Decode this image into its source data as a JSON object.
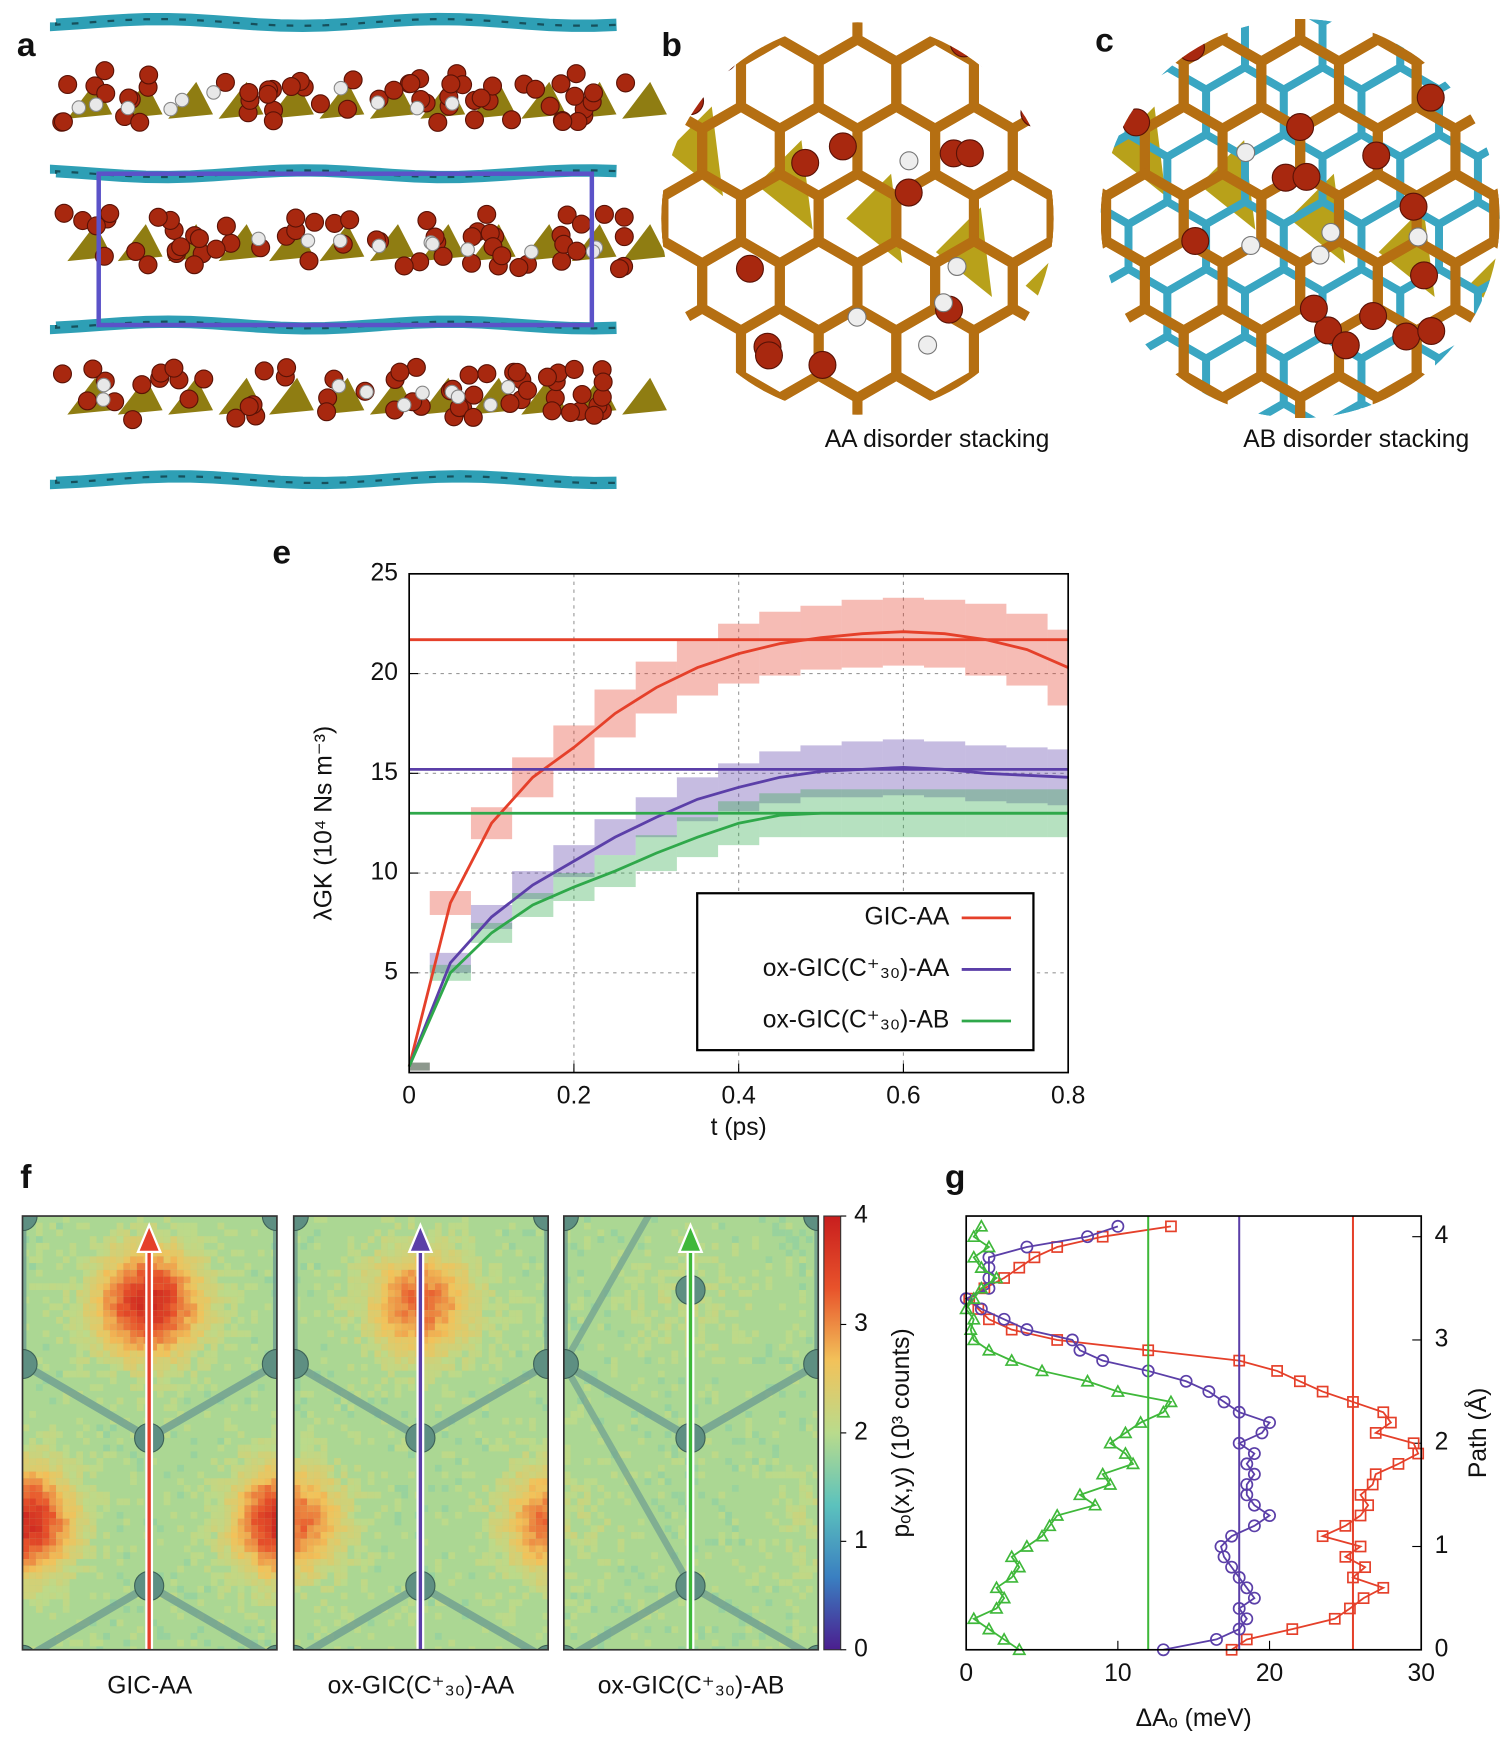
{
  "panel_labels": [
    "a",
    "b",
    "c",
    "e",
    "f",
    "g"
  ],
  "captions": {
    "b": "AA disorder stacking",
    "c": "AB disorder stacking"
  },
  "chart_data": [
    {
      "type": "line",
      "x_label": "t (ps)",
      "y_label": "λGK (10⁴ Ns m⁻³)",
      "x": [
        0,
        0.05,
        0.1,
        0.15,
        0.2,
        0.25,
        0.3,
        0.35,
        0.4,
        0.45,
        0.5,
        0.55,
        0.6,
        0.65,
        0.7,
        0.75,
        0.8
      ],
      "xlim": [
        0,
        0.8
      ],
      "xticks": [
        0,
        0.2,
        0.4,
        0.6,
        0.8
      ],
      "ylim": [
        0,
        25
      ],
      "yticks": [
        5,
        10,
        15,
        20,
        25
      ],
      "grid": true,
      "legend": "lower right",
      "series": [
        {
          "name": "GIC-AA",
          "color": "#e5402a",
          "values": [
            0.3,
            8.5,
            12.5,
            14.8,
            16.3,
            18.0,
            19.3,
            20.3,
            21.0,
            21.5,
            21.8,
            22.0,
            22.1,
            22.0,
            21.7,
            21.2,
            20.3
          ],
          "errors": [
            0.2,
            0.6,
            0.8,
            1.0,
            1.1,
            1.2,
            1.3,
            1.4,
            1.5,
            1.6,
            1.6,
            1.7,
            1.7,
            1.7,
            1.8,
            1.8,
            1.9
          ],
          "mean": 21.7
        },
        {
          "name": "ox-GIC(C⁺₃₀)-AA",
          "color": "#5b3fa8",
          "values": [
            0.3,
            5.5,
            7.8,
            9.4,
            10.6,
            11.8,
            12.8,
            13.7,
            14.3,
            14.8,
            15.1,
            15.2,
            15.3,
            15.2,
            15.0,
            14.9,
            14.8
          ],
          "errors": [
            0.2,
            0.5,
            0.6,
            0.7,
            0.8,
            0.9,
            1.0,
            1.1,
            1.2,
            1.3,
            1.3,
            1.4,
            1.4,
            1.4,
            1.4,
            1.4,
            1.4
          ],
          "mean": 15.2
        },
        {
          "name": "ox-GIC(C⁺₃₀)-AB",
          "color": "#2fa84a",
          "values": [
            0.3,
            5.0,
            7.0,
            8.4,
            9.3,
            10.1,
            11.0,
            11.8,
            12.5,
            12.9,
            13.0,
            13.0,
            13.0,
            13.0,
            13.0,
            13.0,
            13.0
          ],
          "errors": [
            0.2,
            0.4,
            0.5,
            0.6,
            0.7,
            0.8,
            0.9,
            1.0,
            1.1,
            1.1,
            1.2,
            1.2,
            1.2,
            1.2,
            1.2,
            1.2,
            1.2
          ],
          "mean": 13.0
        }
      ]
    },
    {
      "type": "heatmap",
      "maps": [
        "GIC-AA",
        "ox-GIC(C⁺₃₀)-AA",
        "ox-GIC(C⁺₃₀)-AB"
      ],
      "arrow_colors": [
        "#e5402a",
        "#5b3fa8",
        "#3fb83a"
      ],
      "colorbar_label": "pₒ(x,y) (10³ counts)",
      "clim": [
        0,
        4
      ],
      "cticks": [
        0,
        1,
        2,
        3,
        4
      ],
      "colormap": [
        "#4b1e8f",
        "#3a7fc1",
        "#5cc2bd",
        "#b9db8c",
        "#f2c25a",
        "#e8532b",
        "#c81e1e"
      ]
    },
    {
      "type": "line",
      "orientation": "horizontal",
      "x_label": "ΔAₒ (meV)",
      "y_label": "Path (Å)",
      "y": [
        0,
        0.1,
        0.2,
        0.3,
        0.4,
        0.5,
        0.6,
        0.7,
        0.8,
        0.9,
        1.0,
        1.1,
        1.2,
        1.3,
        1.4,
        1.5,
        1.6,
        1.7,
        1.8,
        1.9,
        2.0,
        2.1,
        2.2,
        2.3,
        2.4,
        2.5,
        2.6,
        2.7,
        2.8,
        2.9,
        3.0,
        3.1,
        3.2,
        3.3,
        3.4,
        3.5,
        3.6,
        3.7,
        3.8,
        3.9,
        4.0,
        4.1
      ],
      "xlim": [
        0,
        30
      ],
      "xticks": [
        0,
        10,
        20,
        30
      ],
      "ylim": [
        0,
        4.2
      ],
      "yticks": [
        0,
        1,
        2,
        3,
        4
      ],
      "series": [
        {
          "color": "#e5402a",
          "marker": "square",
          "values": [
            17.5,
            18.5,
            21.5,
            24.3,
            25.3,
            26.2,
            27.5,
            25.5,
            26.3,
            25.0,
            26.0,
            23.5,
            25.0,
            26.0,
            26.5,
            26.0,
            26.8,
            27.0,
            28.5,
            29.8,
            29.5,
            27.0,
            28.0,
            27.5,
            25.5,
            23.5,
            22.0,
            20.5,
            18.0,
            12.0,
            6.0,
            3.0,
            1.5,
            0.8,
            0.2,
            1.2,
            2.5,
            3.5,
            4.5,
            6.0,
            9.0,
            13.5
          ],
          "mean": 25.5
        },
        {
          "color": "#5b3fa8",
          "marker": "circle",
          "values": [
            13,
            16.5,
            18.0,
            18.5,
            18.0,
            19.0,
            18.5,
            18.0,
            17.5,
            17.0,
            16.8,
            17.5,
            19.0,
            20.0,
            19.0,
            18.5,
            18.5,
            19.0,
            18.5,
            19.0,
            18.0,
            19.5,
            20.0,
            18.0,
            17.0,
            16.0,
            14.5,
            12.0,
            9.0,
            7.5,
            7.0,
            4.0,
            2.5,
            1.0,
            0.0,
            1.5,
            1.5,
            1.5,
            1.5,
            4.0,
            8.0,
            10.0
          ],
          "mean": 18.0
        },
        {
          "color": "#3fb83a",
          "marker": "triangle",
          "values": [
            3.5,
            2.5,
            1.5,
            0.5,
            2.0,
            2.5,
            2.0,
            3.0,
            3.5,
            3.0,
            4.0,
            5.0,
            5.5,
            6.0,
            8.5,
            7.5,
            9.5,
            9.0,
            11.0,
            10.5,
            9.5,
            10.5,
            11.5,
            13.0,
            13.5,
            10.0,
            8.0,
            5.0,
            3.0,
            1.5,
            0.5,
            0.3,
            0.5,
            0.0,
            0.5,
            1.0,
            2.0,
            1.0,
            0.5,
            1.5,
            0.5,
            1.0
          ],
          "mean": 12.0
        }
      ]
    }
  ]
}
